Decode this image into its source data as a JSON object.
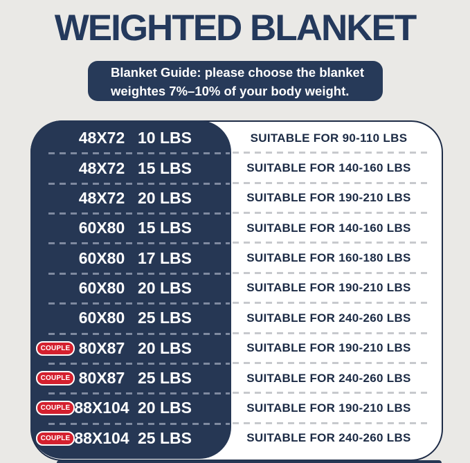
{
  "title": "WEIGHTED BLANKET",
  "banner": {
    "line1": "Blanket Guide: please choose the blanket",
    "line2": "weightes 7%–10% of your body weight."
  },
  "guide_table": {
    "couple_badge_label": "COUPLE",
    "rows": [
      {
        "couple": false,
        "size": "48X72",
        "weight": "10 LBS",
        "suitable": "SUITABLE FOR 90-110 LBS"
      },
      {
        "couple": false,
        "size": "48X72",
        "weight": "15 LBS",
        "suitable": "SUITABLE FOR 140-160 LBS"
      },
      {
        "couple": false,
        "size": "48X72",
        "weight": "20 LBS",
        "suitable": "SUITABLE FOR 190-210 LBS"
      },
      {
        "couple": false,
        "size": "60X80",
        "weight": "15 LBS",
        "suitable": "SUITABLE FOR 140-160 LBS"
      },
      {
        "couple": false,
        "size": "60X80",
        "weight": "17 LBS",
        "suitable": "SUITABLE FOR 160-180 LBS"
      },
      {
        "couple": false,
        "size": "60X80",
        "weight": "20 LBS",
        "suitable": "SUITABLE FOR 190-210 LBS"
      },
      {
        "couple": false,
        "size": "60X80",
        "weight": "25 LBS",
        "suitable": "SUITABLE FOR 240-260 LBS"
      },
      {
        "couple": true,
        "size": "80X87",
        "weight": "20 LBS",
        "suitable": "SUITABLE FOR 190-210 LBS"
      },
      {
        "couple": true,
        "size": "80X87",
        "weight": "25 LBS",
        "suitable": "SUITABLE FOR 240-260 LBS"
      },
      {
        "couple": true,
        "size": "88X104",
        "weight": "20 LBS",
        "suitable": "SUITABLE FOR 190-210 LBS"
      },
      {
        "couple": true,
        "size": "88X104",
        "weight": "25 LBS",
        "suitable": "SUITABLE FOR 240-260 LBS"
      }
    ]
  },
  "colors": {
    "background": "#eae9e6",
    "navy": "#263754",
    "title_navy": "#24395c",
    "banner_navy": "#273a59",
    "card_border": "#1d2b46",
    "suitable_text": "#1b2a44",
    "badge_red": "#d4202e",
    "dash_on_navy": "#7f8aa0",
    "dash_on_white": "#c7c9cd"
  }
}
